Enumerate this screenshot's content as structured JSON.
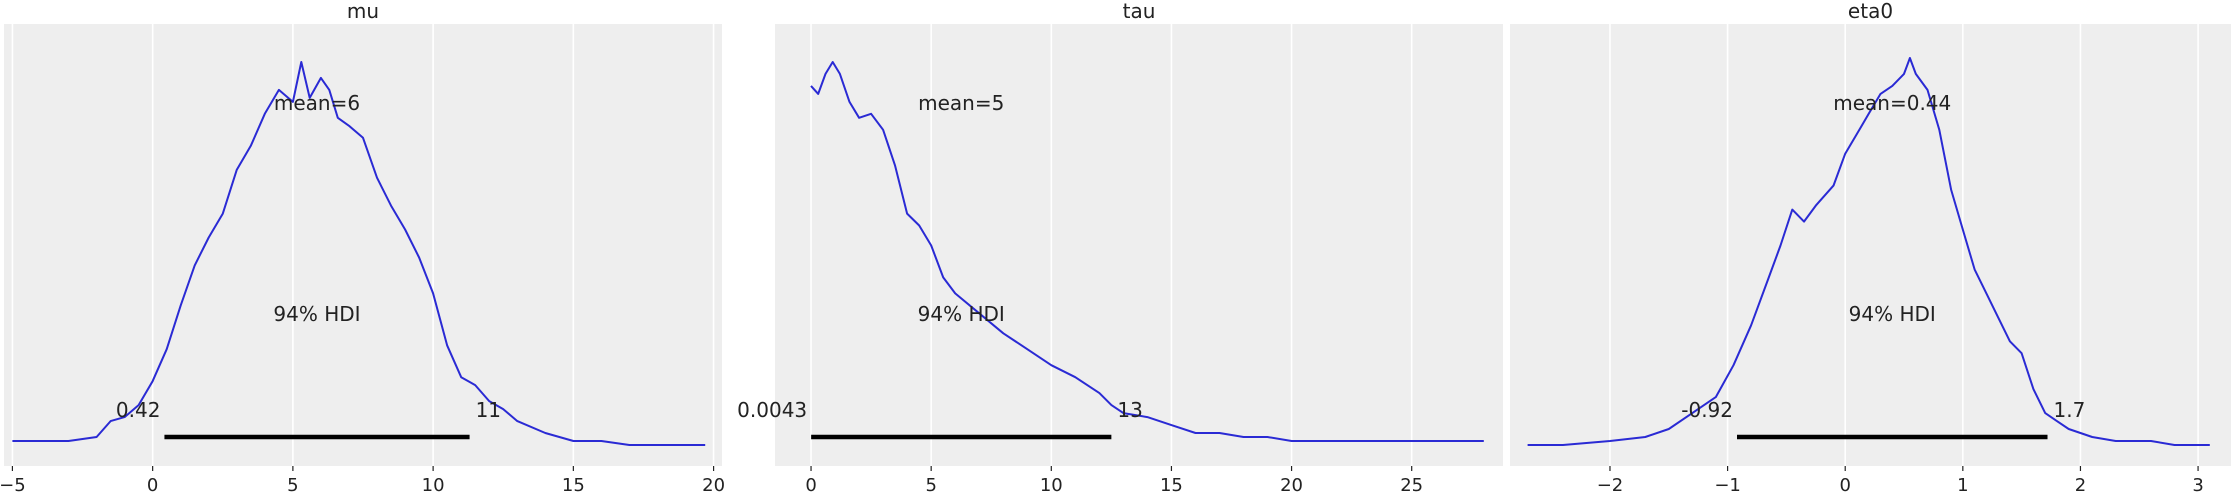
{
  "colors": {
    "curve": "#2a2ad4",
    "hdi_bar": "#000000",
    "panel": "#eeeeee",
    "grid": "#ffffff"
  },
  "chart_data": [
    {
      "type": "line",
      "title": "mu",
      "xlim": [
        -5.3,
        20.3
      ],
      "ylim": [
        0,
        1
      ],
      "xticks": [
        -5,
        0,
        5,
        10,
        15,
        20
      ],
      "xtick_labels": [
        "−5",
        "0",
        "5",
        "10",
        "15",
        "20"
      ],
      "grid": true,
      "mean_label": "mean=6",
      "hdi_label": "94% HDI",
      "hdi_low_label": "0.42",
      "hdi_high_label": "11",
      "hdi": [
        0.42,
        11.3
      ],
      "x": [
        -5,
        -4,
        -3,
        -2,
        -1.5,
        -1,
        -0.5,
        0,
        0.5,
        1,
        1.5,
        2,
        2.5,
        3,
        3.5,
        4,
        4.5,
        5,
        5.3,
        5.6,
        6,
        6.3,
        6.6,
        7,
        7.5,
        8,
        8.5,
        9,
        9.5,
        10,
        10.5,
        11,
        11.5,
        12,
        12.5,
        13,
        14,
        15,
        16,
        17,
        18,
        19,
        19.7
      ],
      "y": [
        0.01,
        0.01,
        0.01,
        0.02,
        0.06,
        0.07,
        0.1,
        0.16,
        0.24,
        0.35,
        0.45,
        0.52,
        0.58,
        0.69,
        0.75,
        0.83,
        0.89,
        0.86,
        0.96,
        0.87,
        0.92,
        0.89,
        0.82,
        0.8,
        0.77,
        0.67,
        0.6,
        0.54,
        0.47,
        0.38,
        0.25,
        0.17,
        0.15,
        0.11,
        0.09,
        0.06,
        0.03,
        0.01,
        0.01,
        0.0,
        0.0,
        0.0,
        0.0
      ]
    },
    {
      "type": "line",
      "title": "tau",
      "xlim": [
        -1.5,
        28.8
      ],
      "ylim": [
        0,
        1
      ],
      "xticks": [
        0,
        5,
        10,
        15,
        20,
        25
      ],
      "xtick_labels": [
        "0",
        "5",
        "10",
        "15",
        "20",
        "25"
      ],
      "grid": true,
      "mean_label": "mean=5",
      "hdi_label": "94% HDI",
      "hdi_low_label": "0.0043",
      "hdi_high_label": "13",
      "hdi": [
        0.0043,
        12.5
      ],
      "x": [
        0,
        0.3,
        0.6,
        0.9,
        1.2,
        1.6,
        2,
        2.5,
        3,
        3.5,
        4,
        4.5,
        5,
        5.5,
        6,
        7,
        8,
        9,
        10,
        11,
        12,
        12.5,
        13,
        14,
        15,
        16,
        17,
        18,
        19,
        20,
        22,
        24,
        26,
        28
      ],
      "y": [
        0.9,
        0.88,
        0.93,
        0.96,
        0.93,
        0.86,
        0.82,
        0.83,
        0.79,
        0.7,
        0.58,
        0.55,
        0.5,
        0.42,
        0.38,
        0.33,
        0.28,
        0.24,
        0.2,
        0.17,
        0.13,
        0.1,
        0.08,
        0.07,
        0.05,
        0.03,
        0.03,
        0.02,
        0.02,
        0.01,
        0.01,
        0.01,
        0.01,
        0.01
      ]
    },
    {
      "type": "line",
      "title": "eta0",
      "xlim": [
        -2.85,
        3.28
      ],
      "ylim": [
        0,
        1
      ],
      "xticks": [
        -2,
        -1,
        0,
        1,
        2,
        3
      ],
      "xtick_labels": [
        "−2",
        "−1",
        "0",
        "1",
        "2",
        "3"
      ],
      "grid": true,
      "mean_label": "mean=0.44",
      "hdi_label": "94% HDI",
      "hdi_low_label": "-0.92",
      "hdi_high_label": "1.7",
      "hdi": [
        -0.92,
        1.72
      ],
      "x": [
        -2.7,
        -2.4,
        -2.0,
        -1.7,
        -1.5,
        -1.3,
        -1.1,
        -0.95,
        -0.8,
        -0.65,
        -0.55,
        -0.45,
        -0.35,
        -0.25,
        -0.1,
        0,
        0.1,
        0.2,
        0.3,
        0.4,
        0.5,
        0.55,
        0.6,
        0.7,
        0.8,
        0.9,
        1.0,
        1.1,
        1.2,
        1.3,
        1.4,
        1.5,
        1.6,
        1.7,
        1.8,
        1.9,
        2.1,
        2.3,
        2.6,
        2.8,
        3.1
      ],
      "y": [
        0.0,
        0.0,
        0.01,
        0.02,
        0.04,
        0.08,
        0.12,
        0.2,
        0.3,
        0.42,
        0.5,
        0.59,
        0.56,
        0.6,
        0.65,
        0.73,
        0.78,
        0.83,
        0.88,
        0.9,
        0.93,
        0.97,
        0.93,
        0.89,
        0.79,
        0.64,
        0.54,
        0.44,
        0.38,
        0.32,
        0.26,
        0.23,
        0.14,
        0.08,
        0.06,
        0.04,
        0.02,
        0.01,
        0.01,
        0.0,
        0.0
      ]
    }
  ]
}
